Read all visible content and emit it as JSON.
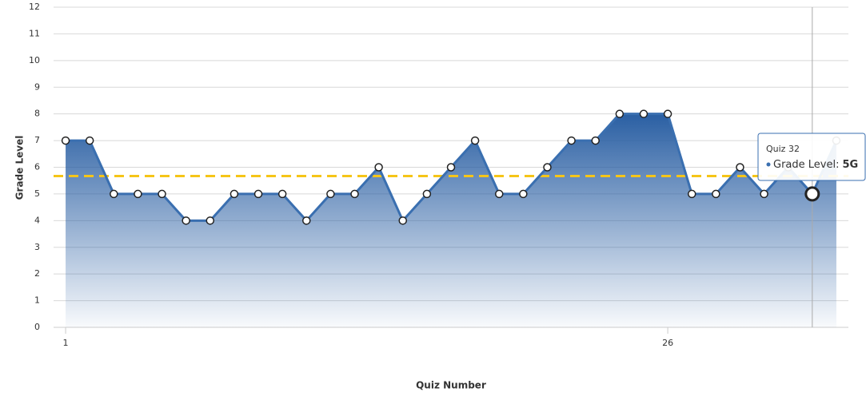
{
  "chart_data": {
    "type": "area",
    "x_label": "Quiz Number",
    "y_label": "Grade Level",
    "x": [
      1,
      2,
      3,
      4,
      5,
      6,
      7,
      8,
      9,
      10,
      11,
      12,
      13,
      14,
      15,
      16,
      17,
      18,
      19,
      20,
      21,
      22,
      23,
      24,
      25,
      26,
      27,
      28,
      29,
      30,
      31,
      32,
      33
    ],
    "series": [
      {
        "name": "Grade Level",
        "color": "#3a6fb0",
        "values": [
          7,
          7,
          5,
          5,
          5,
          4,
          4,
          5,
          5,
          5,
          4,
          5,
          5,
          6,
          4,
          5,
          6,
          7,
          5,
          5,
          6,
          7,
          7,
          8,
          8,
          8,
          5,
          5,
          6,
          5,
          6,
          5,
          7
        ]
      }
    ],
    "average": 5.67,
    "average_color": "#f5c518",
    "xlim": [
      0.5,
      33.5
    ],
    "xticks": [
      1,
      26
    ],
    "ylim": [
      0,
      12
    ],
    "yticks": [
      0,
      1,
      2,
      3,
      4,
      5,
      6,
      7,
      8,
      9,
      10,
      11,
      12
    ],
    "grid": true,
    "tooltip": {
      "index": 31,
      "title": "Quiz 32",
      "label": "Grade Level:",
      "value_label": "5G"
    }
  }
}
